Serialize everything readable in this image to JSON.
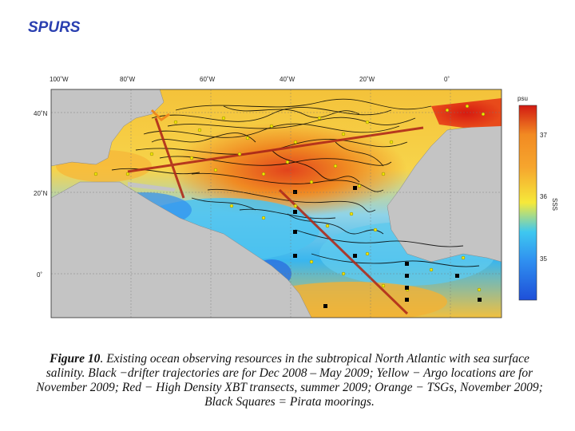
{
  "slide": {
    "title": "SPURS"
  },
  "map": {
    "lon_labels": [
      "100˚W",
      "80˚W",
      "60˚W",
      "40˚W",
      "20˚W",
      "0˚"
    ],
    "lat_labels": [
      "40˚N",
      "20˚N",
      "0˚"
    ],
    "colorbar": {
      "unit": "psu",
      "ticks": [
        "37",
        "36",
        "35"
      ],
      "side_label": "SSS",
      "colors": [
        "#1e4fd8",
        "#3ec8f0",
        "#f6e93a",
        "#f28a22",
        "#d21a12"
      ]
    },
    "colors": {
      "land": "#c4c4c4",
      "drifter_tracks": "#000000",
      "argo_floats": "#f3e600",
      "xbt_transects": "#b02a1a",
      "tsg_tracks": "#f08a1c",
      "pirata_moorings": "#000000"
    }
  },
  "caption": {
    "label": "Figure 10",
    "text": ". Existing ocean observing resources in the subtropical North Atlantic with sea surface salinity. Black −drifter trajectories are for Dec 2008 – May 2009; Yellow − Argo locations are for November 2009; Red − High Density XBT transects, summer 2009; Orange − TSGs, November 2009; Black Squares = Pirata moorings."
  }
}
